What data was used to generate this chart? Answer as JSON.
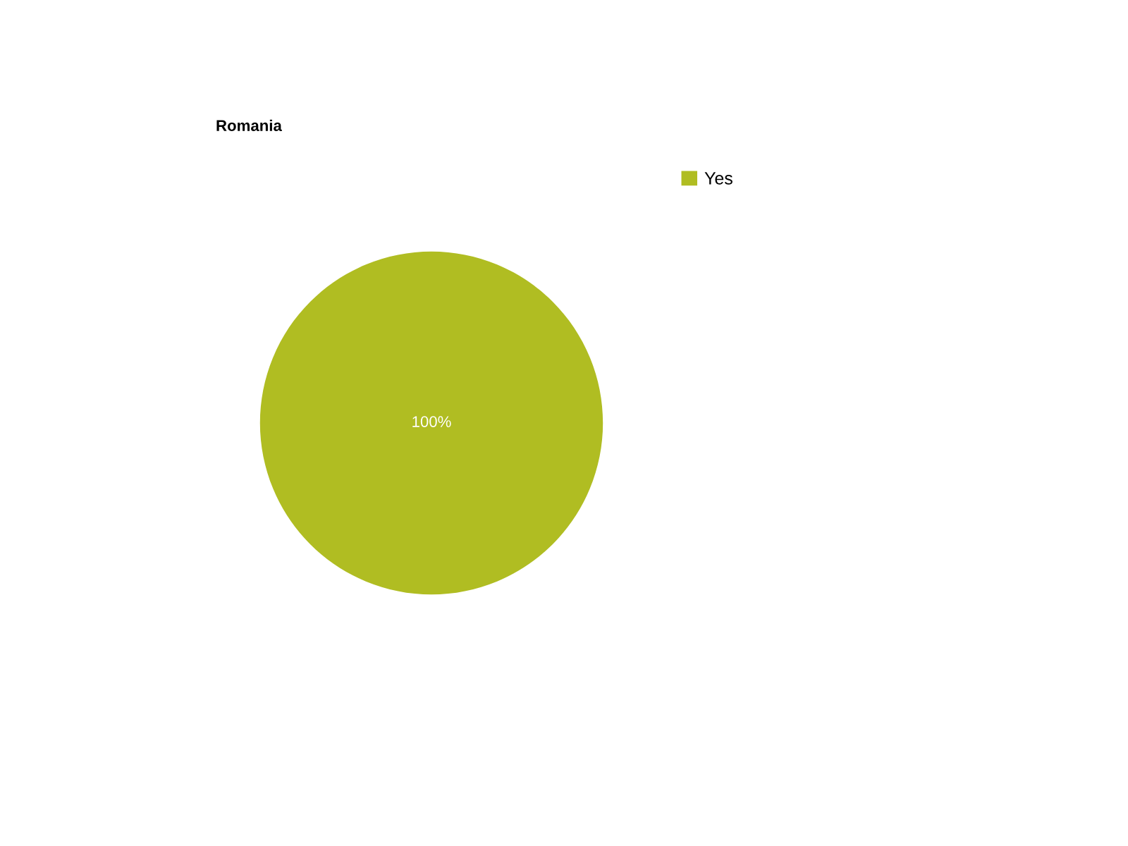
{
  "chart_data": {
    "type": "pie",
    "title": "Romania",
    "categories": [
      "Yes"
    ],
    "values": [
      100
    ],
    "colors": [
      "#b0bd22"
    ],
    "value_labels": [
      "100%"
    ],
    "legend": "top right"
  }
}
